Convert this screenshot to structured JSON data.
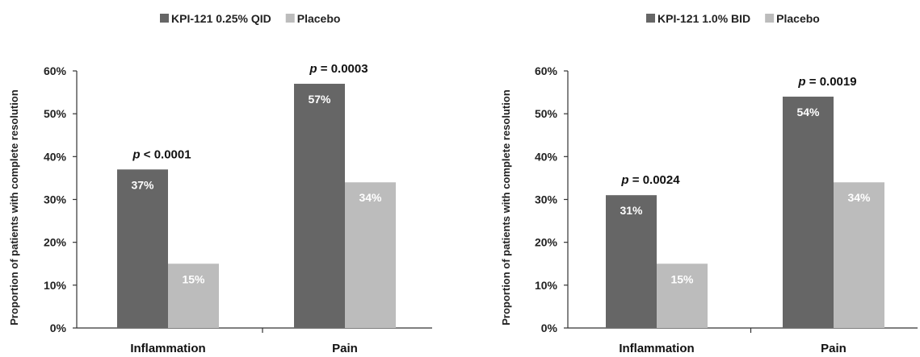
{
  "chart_data": [
    {
      "type": "bar",
      "categories": [
        "Inflammation",
        "Pain"
      ],
      "series": [
        {
          "name": "KPI-121 0.25% QID",
          "values": [
            37,
            57
          ],
          "color": "#666666"
        },
        {
          "name": "Placebo",
          "values": [
            15,
            34
          ],
          "color": "#bcbcbc"
        }
      ],
      "value_labels": [
        [
          "37%",
          "57%"
        ],
        [
          "15%",
          "34%"
        ]
      ],
      "p_values": [
        {
          "category": "Inflammation",
          "text": "< 0.0001"
        },
        {
          "category": "Pain",
          "text": "= 0.0003"
        }
      ],
      "xlabel": "",
      "ylabel": "Proportion of patients with complete resolution",
      "ylim": [
        0,
        60
      ],
      "yticks": [
        "0%",
        "10%",
        "20%",
        "30%",
        "40%",
        "50%",
        "60%"
      ],
      "legend_position": "top-center",
      "grid": false
    },
    {
      "type": "bar",
      "categories": [
        "Inflammation",
        "Pain"
      ],
      "series": [
        {
          "name": "KPI-121 1.0% BID",
          "values": [
            31,
            54
          ],
          "color": "#666666"
        },
        {
          "name": "Placebo",
          "values": [
            15,
            34
          ],
          "color": "#bcbcbc"
        }
      ],
      "value_labels": [
        [
          "31%",
          "54%"
        ],
        [
          "15%",
          "34%"
        ]
      ],
      "p_values": [
        {
          "category": "Inflammation",
          "text": "= 0.0024"
        },
        {
          "category": "Pain",
          "text": "= 0.0019"
        }
      ],
      "xlabel": "",
      "ylabel": "Proportion of patients with complete resolution",
      "ylim": [
        0,
        60
      ],
      "yticks": [
        "0%",
        "10%",
        "20%",
        "30%",
        "40%",
        "50%",
        "60%"
      ],
      "legend_position": "top-center",
      "grid": false
    }
  ]
}
